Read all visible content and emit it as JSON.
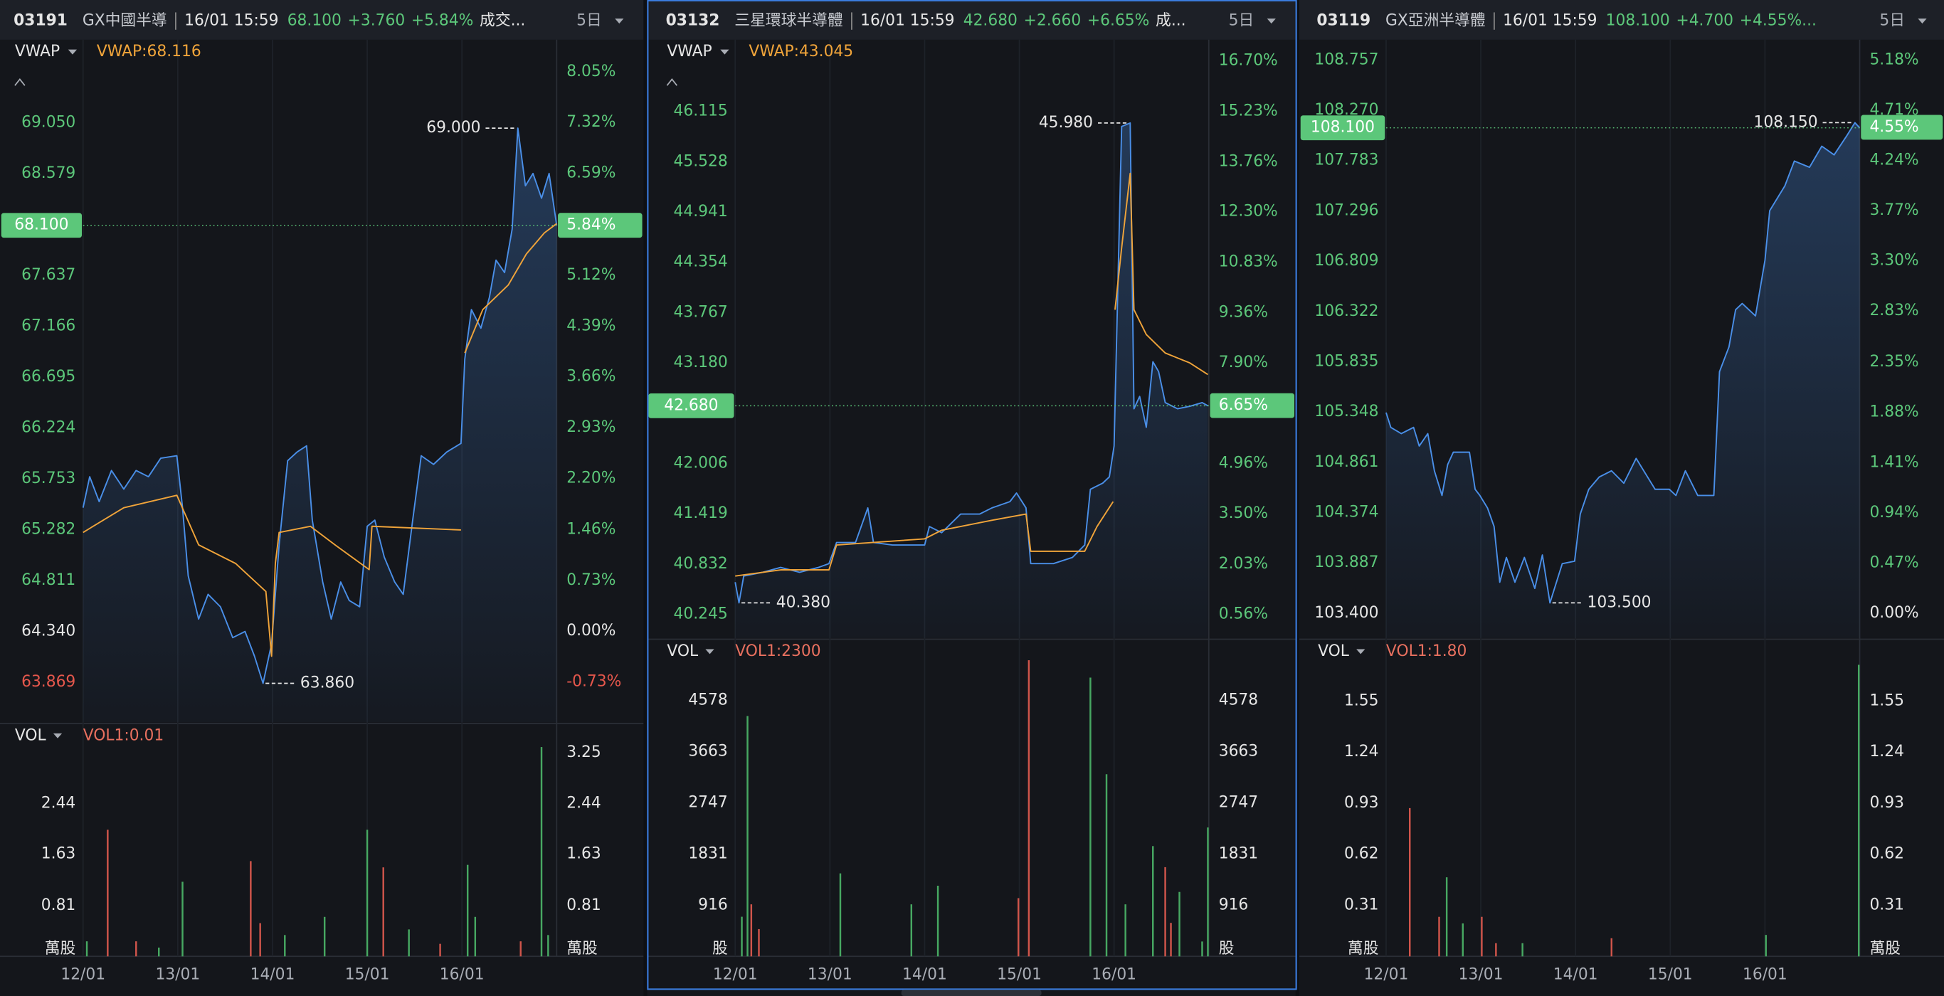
{
  "chart_data": [
    {
      "type": "line",
      "header": {
        "code": "03191",
        "name": "GX中國半導",
        "time": "16/01 15:59",
        "change": "+3.760",
        "change_pct": "+5.84%",
        "extra": "成交...",
        "period": "5日"
      },
      "indicator": "VWAP",
      "indicator_value": "VWAP:68.116",
      "last": {
        "value": 68.1,
        "label": "68.100"
      },
      "last_pct": {
        "value": 5.84,
        "label": "5.84%"
      },
      "high": {
        "value": 69.0,
        "label": "69.000"
      },
      "low": {
        "value": 63.86,
        "label": "63.860"
      },
      "xlim": [
        0,
        5
      ],
      "xticks": [
        {
          "value": 0,
          "label": "12/01"
        },
        {
          "value": 1,
          "label": "13/01"
        },
        {
          "value": 2,
          "label": "14/01"
        },
        {
          "value": 3,
          "label": "15/01"
        },
        {
          "value": 4,
          "label": "16/01"
        }
      ],
      "ylim": [
        63.5,
        69.67
      ],
      "yticks": [
        {
          "value": 69.05,
          "label": "69.050"
        },
        68.579,
        67.637,
        67.166,
        66.695,
        66.224,
        65.753,
        65.282,
        64.811,
        {
          "value": 64.34,
          "label": "64.340"
        },
        63.869
      ],
      "y2lim": [
        -1.31,
        8.28
      ],
      "y2ticks": [
        {
          "value": 8.05,
          "label": "8.05%"
        },
        {
          "value": 7.32,
          "label": "7.32%"
        },
        {
          "value": 6.59,
          "label": "6.59%"
        },
        {
          "value": 5.12,
          "label": "5.12%"
        },
        {
          "value": 4.39,
          "label": "4.39%"
        },
        {
          "value": 3.66,
          "label": "3.66%"
        },
        {
          "value": 2.93,
          "label": "2.93%"
        },
        {
          "value": 2.2,
          "label": "2.20%"
        },
        {
          "value": 1.46,
          "label": "1.46%"
        },
        {
          "value": 0.73,
          "label": "0.73%"
        },
        {
          "value": 0,
          "label": "0.00%"
        },
        {
          "value": -0.73,
          "label": "-0.73%"
        }
      ],
      "series": [
        {
          "color": "#4a8fe8",
          "x": [
            0,
            0.07,
            0.17,
            0.3,
            0.43,
            0.56,
            0.69,
            0.82,
            0.99,
            1.05,
            1.11,
            1.22,
            1.32,
            1.45,
            1.58,
            1.71,
            1.81,
            1.9,
            1.99,
            2.07,
            2.16,
            2.26,
            2.36,
            2.42,
            2.53,
            2.62,
            2.72,
            2.81,
            2.92,
            3.0,
            3.08,
            3.18,
            3.29,
            3.38,
            3.48,
            3.57,
            3.7,
            3.84,
            3.99,
            4.03,
            4.1,
            4.2,
            4.29,
            4.36,
            4.45,
            4.53,
            4.59,
            4.67,
            4.75,
            4.84,
            4.92,
            5.0
          ],
          "values": [
            65.486,
            65.773,
            65.543,
            65.83,
            65.658,
            65.83,
            65.773,
            65.944,
            65.967,
            65.486,
            64.856,
            64.455,
            64.684,
            64.569,
            64.283,
            64.34,
            64.111,
            63.86,
            64.225,
            65.142,
            65.921,
            66.002,
            66.059,
            65.371,
            64.798,
            64.455,
            64.798,
            64.627,
            64.569,
            65.314,
            65.371,
            65.028,
            64.798,
            64.684,
            65.371,
            65.967,
            65.887,
            66.002,
            66.082,
            66.861,
            67.32,
            67.148,
            67.434,
            67.778,
            67.663,
            68.065,
            69.0,
            68.466,
            68.58,
            68.351,
            68.58,
            68.1
          ]
        },
        {
          "color": "#f0a43a",
          "x": [
            0,
            0.43,
            0.99,
            1.22,
            1.61,
            1.93,
            1.99,
            2.03,
            2.07,
            2.4,
            2.66,
            3.02,
            3.05,
            3.99,
            4.0,
            4.03,
            4.22,
            4.49,
            4.68,
            4.87,
            5.0
          ],
          "values": [
            65.257,
            65.486,
            65.601,
            65.142,
            64.97,
            64.71,
            64.111,
            64.97,
            65.257,
            65.314,
            65.142,
            64.913,
            65.314,
            65.28,
            null,
            66.918,
            67.32,
            67.549,
            67.835,
            68.03,
            68.116
          ]
        }
      ],
      "volume": {
        "type": "bar",
        "label": "VOL",
        "indicator": "VOL1:0.01",
        "unit": "萬股",
        "ylim": [
          0,
          3.4
        ],
        "yticks": [
          0.81,
          1.63,
          2.44
        ],
        "y2lim": [
          0,
          3.4
        ],
        "y2ticks": [
          0.81,
          1.63,
          2.44,
          3.25
        ],
        "series": [
          {
            "color": "#47a862",
            "x": [
              0.04,
              0.8,
              1.05,
              2.13,
              2.55,
              3.0,
              3.44,
              4.06,
              4.14,
              4.84,
              4.91
            ],
            "values": [
              0.24,
              0.14,
              1.19,
              0.34,
              0.63,
              2.02,
              0.43,
              1.46,
              0.63,
              3.34,
              0.34
            ]
          },
          {
            "color": "#d0554b",
            "x": [
              0.26,
              0.56,
              1.77,
              1.87,
              3.17,
              3.77,
              4.62
            ],
            "values": [
              2.02,
              0.24,
              1.52,
              0.53,
              1.42,
              0.2,
              0.24
            ]
          }
        ]
      }
    },
    {
      "type": "line",
      "header": {
        "code": "03132",
        "name": "三星環球半導體",
        "time": "16/01 15:59",
        "change": "+2.660",
        "change_pct": "+6.65%",
        "extra": "成...",
        "period": "5日"
      },
      "indicator": "VWAP",
      "indicator_value": "VWAP:43.045",
      "last": {
        "value": 42.68,
        "label": "42.680"
      },
      "last_pct": {
        "value": 6.65,
        "label": "6.65%"
      },
      "high": {
        "value": 45.98,
        "label": "45.980"
      },
      "low": {
        "value": 40.38,
        "label": "40.380"
      },
      "xlim": [
        0,
        5
      ],
      "xticks": [
        {
          "value": 0,
          "label": "12/01"
        },
        {
          "value": 1,
          "label": "13/01"
        },
        {
          "value": 2,
          "label": "14/01"
        },
        {
          "value": 3,
          "label": "15/01"
        },
        {
          "value": 4,
          "label": "16/01"
        }
      ],
      "ylim": [
        39.97,
        46.765
      ],
      "yticks": [
        46.115,
        45.528,
        44.941,
        44.354,
        43.767,
        {
          "value": 43.18,
          "label": "43.180"
        },
        42.006,
        41.419,
        40.832,
        40.245
      ],
      "y2lim": [
        -0.125,
        16.85
      ],
      "y2ticks": [
        {
          "value": 16.7,
          "label": "16.70%"
        },
        {
          "value": 15.23,
          "label": "15.23%"
        },
        {
          "value": 13.76,
          "label": "13.76%"
        },
        {
          "value": 12.3,
          "label": "12.30%"
        },
        {
          "value": 10.83,
          "label": "10.83%"
        },
        {
          "value": 9.36,
          "label": "9.36%"
        },
        {
          "value": 7.9,
          "label": "7.90%"
        },
        {
          "value": 4.96,
          "label": "4.96%"
        },
        {
          "value": 3.5,
          "label": "3.50%"
        },
        {
          "value": 2.03,
          "label": "2.03%"
        },
        {
          "value": 0.56,
          "label": "0.56%"
        }
      ],
      "series": [
        {
          "color": "#4a8fe8",
          "x": [
            0,
            0.04,
            0.09,
            0.29,
            0.48,
            0.68,
            0.88,
            0.99,
            1.07,
            1.27,
            1.4,
            1.46,
            1.66,
            2.0,
            2.05,
            2.18,
            2.38,
            2.58,
            2.71,
            2.9,
            2.97,
            3.07,
            3.12,
            3.36,
            3.56,
            3.69,
            3.75,
            3.88,
            3.95,
            4.0,
            4.08,
            4.17,
            4.21,
            4.27,
            4.34,
            4.41,
            4.47,
            4.54,
            4.67,
            4.8,
            4.93,
            4.99
          ],
          "values": [
            40.621,
            40.38,
            40.693,
            40.737,
            40.794,
            40.737,
            40.794,
            40.838,
            41.084,
            41.084,
            41.488,
            41.084,
            41.055,
            41.055,
            41.271,
            41.199,
            41.416,
            41.416,
            41.488,
            41.561,
            41.662,
            41.488,
            40.838,
            40.838,
            40.91,
            41.055,
            41.705,
            41.777,
            41.85,
            42.211,
            45.94,
            45.98,
            42.645,
            42.789,
            42.428,
            43.194,
            43.079,
            42.717,
            42.645,
            42.674,
            42.717,
            42.68
          ]
        },
        {
          "color": "#f0a43a",
          "x": [
            0,
            0.48,
            0.99,
            1.07,
            2.0,
            2.18,
            2.71,
            3.07,
            3.12,
            3.69,
            3.82,
            3.99,
            4.0,
            4.01,
            4.08,
            4.17,
            4.21,
            4.34,
            4.54,
            4.8,
            4.99
          ],
          "values": [
            40.693,
            40.765,
            40.765,
            41.055,
            41.127,
            41.228,
            41.344,
            41.416,
            40.982,
            40.982,
            41.271,
            41.561,
            null,
            43.801,
            44.524,
            45.392,
            43.801,
            43.512,
            43.296,
            43.18,
            43.045
          ]
        }
      ],
      "volume": {
        "type": "bar",
        "label": "VOL",
        "indicator": "VOL1:2300",
        "unit": "股",
        "ylim": [
          0,
          5400
        ],
        "yticks": [
          916,
          1831,
          2747,
          3663,
          4578
        ],
        "y2lim": [
          0,
          5400
        ],
        "y2ticks": [
          916,
          1831,
          2747,
          3663,
          4578
        ],
        "series": [
          {
            "color": "#47a862",
            "x": [
              0.07,
              0.13,
              1.11,
              1.86,
              2.14,
              3.75,
              3.92,
              4.12,
              4.41,
              4.69,
              4.93,
              4.99
            ],
            "values": [
              709,
              4301,
              1485,
              931,
              1264,
              4988,
              3259,
              931,
              1973,
              1153,
              266,
              2306
            ]
          },
          {
            "color": "#d0554b",
            "x": [
              0.17,
              0.25,
              2.99,
              3.1,
              4.54,
              4.6
            ],
            "values": [
              931,
              488,
              1042,
              5299,
              1596,
              599
            ]
          }
        ]
      }
    },
    {
      "type": "line",
      "header": {
        "code": "03119",
        "name": "GX亞洲半導體",
        "time": "16/01 15:59",
        "change": "+4.700",
        "change_pct": "+4.55%...",
        "period": "5日"
      },
      "last": {
        "value": 108.1,
        "label": "108.100"
      },
      "last_pct": {
        "value": 4.55,
        "label": "4.55%"
      },
      "high": {
        "value": 108.15,
        "label": "108.150"
      },
      "low": {
        "value": 103.5,
        "label": "103.500"
      },
      "xlim": [
        0,
        5
      ],
      "xticks": [
        {
          "value": 0,
          "label": "12/01"
        },
        {
          "value": 1,
          "label": "13/01"
        },
        {
          "value": 2,
          "label": "14/01"
        },
        {
          "value": 3,
          "label": "15/01"
        },
        {
          "value": 4,
          "label": "16/01"
        }
      ],
      "ylim": [
        103.16,
        108.798
      ],
      "yticks": [
        108.757,
        {
          "value": 108.27,
          "label": "108.270"
        },
        107.783,
        107.296,
        106.809,
        106.322,
        105.835,
        105.348,
        104.861,
        104.374,
        103.887,
        {
          "value": 103.4,
          "label": "103.400"
        }
      ],
      "y2lim": [
        -0.232,
        5.22
      ],
      "y2ticks": [
        {
          "value": 5.18,
          "label": "5.18%"
        },
        {
          "value": 4.71,
          "label": "4.71%"
        },
        {
          "value": 4.24,
          "label": "4.24%"
        },
        {
          "value": 3.77,
          "label": "3.77%"
        },
        {
          "value": 3.3,
          "label": "3.30%"
        },
        {
          "value": 2.83,
          "label": "2.83%"
        },
        {
          "value": 2.35,
          "label": "2.35%"
        },
        {
          "value": 1.88,
          "label": "1.88%"
        },
        {
          "value": 1.41,
          "label": "1.41%"
        },
        {
          "value": 0.94,
          "label": "0.94%"
        },
        {
          "value": 0.47,
          "label": "0.47%"
        },
        {
          "value": 0,
          "label": "0.00%"
        }
      ],
      "series": [
        {
          "color": "#4a8fe8",
          "x": [
            0,
            0.05,
            0.16,
            0.29,
            0.35,
            0.44,
            0.51,
            0.59,
            0.65,
            0.71,
            0.88,
            0.94,
            0.99,
            1.07,
            1.14,
            1.2,
            1.27,
            1.36,
            1.46,
            1.57,
            1.65,
            1.73,
            1.86,
            1.99,
            2.05,
            2.14,
            2.25,
            2.38,
            2.51,
            2.64,
            2.84,
            2.99,
            3.06,
            3.16,
            3.29,
            3.46,
            3.52,
            3.62,
            3.69,
            3.76,
            3.9,
            4.0,
            4.05,
            4.21,
            4.31,
            4.47,
            4.6,
            4.73,
            4.86,
            4.95,
            5.0
          ],
          "values": [
            105.343,
            105.199,
            105.139,
            105.199,
            105.019,
            105.139,
            104.779,
            104.54,
            104.839,
            104.959,
            104.959,
            104.6,
            104.54,
            104.42,
            104.24,
            103.7,
            103.94,
            103.7,
            103.94,
            103.64,
            103.964,
            103.5,
            103.88,
            103.904,
            104.36,
            104.6,
            104.719,
            104.779,
            104.659,
            104.899,
            104.6,
            104.6,
            104.54,
            104.779,
            104.54,
            104.54,
            105.739,
            105.979,
            106.339,
            106.399,
            106.279,
            106.818,
            107.298,
            107.538,
            107.778,
            107.718,
            107.922,
            107.838,
            108.018,
            108.15,
            108.1
          ]
        }
      ],
      "volume": {
        "type": "bar",
        "label": "VOL",
        "indicator": "VOL1:1.80",
        "unit": "萬股",
        "ylim": [
          0,
          1.82
        ],
        "yticks": [
          0.31,
          0.62,
          0.93,
          1.24,
          1.55
        ],
        "y2lim": [
          0,
          1.82
        ],
        "y2ticks": [
          0.31,
          0.62,
          0.93,
          1.24,
          1.55
        ],
        "series": [
          {
            "color": "#47a862",
            "x": [
              0.64,
              0.81,
              1.44,
              4.01,
              4.99
            ],
            "values": [
              0.48,
              0.2,
              0.08,
              0.13,
              1.77
            ]
          },
          {
            "color": "#d0554b",
            "x": [
              0.25,
              0.56,
              1.01,
              1.16,
              2.38
            ],
            "values": [
              0.9,
              0.24,
              0.24,
              0.08,
              0.11
            ]
          }
        ]
      }
    }
  ]
}
